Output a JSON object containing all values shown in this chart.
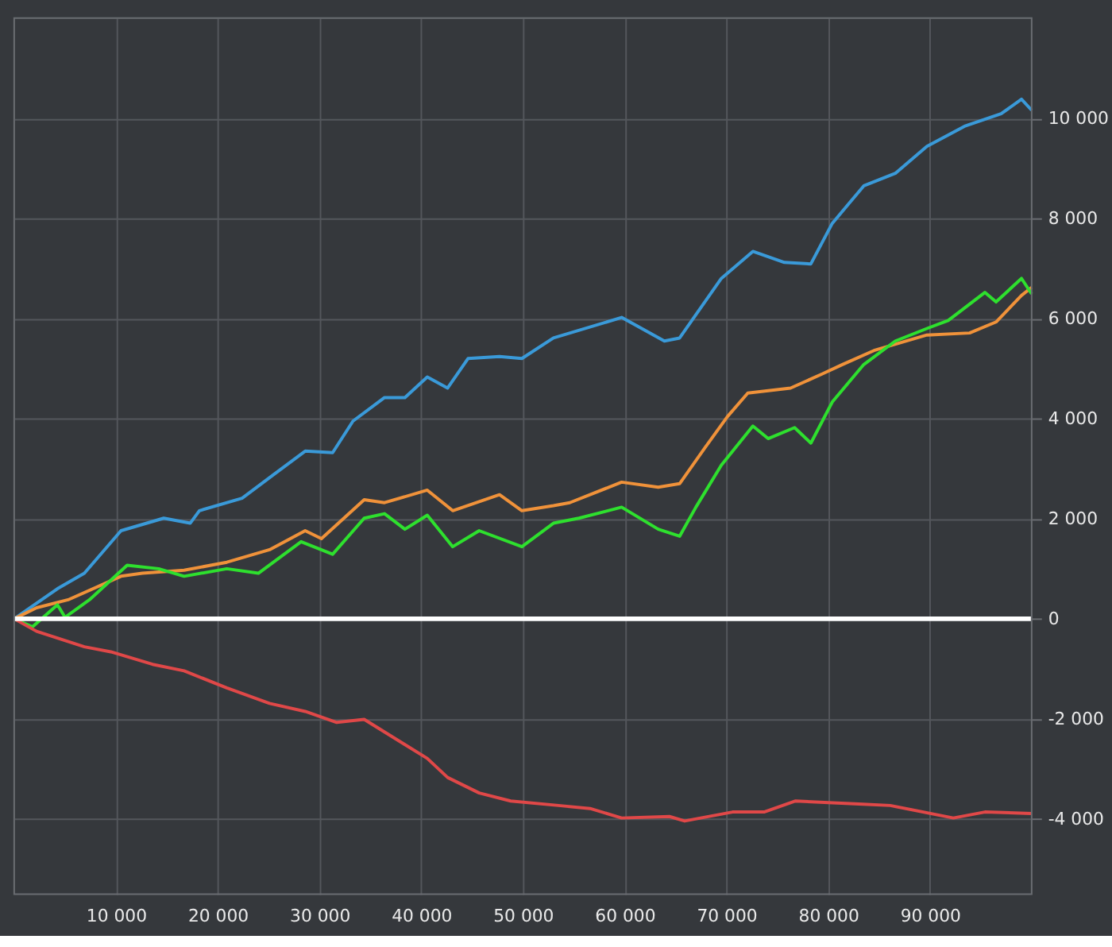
{
  "chart_data": {
    "type": "line",
    "xlim": [
      0,
      100000
    ],
    "ylim": [
      -5500,
      12000
    ],
    "xticks": [
      {
        "value": 10000,
        "label": "10 000"
      },
      {
        "value": 20000,
        "label": "20 000"
      },
      {
        "value": 30000,
        "label": "30 000"
      },
      {
        "value": 40000,
        "label": "40 000"
      },
      {
        "value": 50000,
        "label": "50 000"
      },
      {
        "value": 60000,
        "label": "60 000"
      },
      {
        "value": 70000,
        "label": "70 000"
      },
      {
        "value": 80000,
        "label": "80 000"
      },
      {
        "value": 90000,
        "label": "90 000"
      }
    ],
    "yticks": [
      {
        "value": -4000,
        "label": "-4 000"
      },
      {
        "value": -2000,
        "label": "-2 000"
      },
      0,
      {
        "value": 2000,
        "label": "2 000"
      },
      {
        "value": 4000,
        "label": "4 000"
      },
      {
        "value": 6000,
        "label": "6 000"
      },
      {
        "value": 8000,
        "label": "8 000"
      },
      {
        "value": 10000,
        "label": "10 000"
      }
    ],
    "grid": true,
    "marker": "none",
    "line_style": "solid",
    "ref_lines": [
      {
        "axis": "y",
        "value": 0,
        "color": "#ffffff"
      }
    ],
    "series": [
      {
        "color": "#3a9ad9",
        "x": [
          0,
          4250,
          6900,
          10500,
          14700,
          17300,
          18200,
          22400,
          25500,
          28600,
          31300,
          33300,
          36400,
          38400,
          40600,
          42600,
          44600,
          47700,
          49900,
          53000,
          59700,
          63900,
          65400,
          69500,
          72600,
          75700,
          78300,
          80400,
          83500,
          86600,
          89700,
          93400,
          97000,
          99000,
          100000
        ],
        "values": [
          0,
          600,
          910,
          1760,
          2010,
          1910,
          2160,
          2410,
          2880,
          3350,
          3320,
          3950,
          4420,
          4420,
          4830,
          4610,
          5200,
          5240,
          5200,
          5610,
          6020,
          5550,
          5610,
          6800,
          7340,
          7120,
          7090,
          7900,
          8650,
          8900,
          9440,
          9840,
          10090,
          10380,
          10160
        ]
      },
      {
        "color": "#f0923a",
        "x": [
          0,
          2200,
          5300,
          10500,
          12600,
          16700,
          20900,
          25100,
          28600,
          30200,
          34400,
          36400,
          40600,
          43100,
          47700,
          49900,
          53000,
          54600,
          59700,
          63300,
          65400,
          67900,
          70100,
          72100,
          76300,
          79400,
          81400,
          84500,
          89700,
          93900,
          96500,
          99000,
          100000
        ],
        "values": [
          0,
          220,
          380,
          850,
          910,
          970,
          1130,
          1380,
          1760,
          1600,
          2380,
          2320,
          2570,
          2160,
          2480,
          2160,
          2260,
          2320,
          2730,
          2630,
          2700,
          3420,
          4040,
          4510,
          4610,
          4890,
          5080,
          5360,
          5670,
          5710,
          5930,
          6460,
          6620
        ]
      },
      {
        "color": "#2ee02e",
        "x": [
          0,
          1800,
          4250,
          5000,
          7400,
          11100,
          14200,
          16700,
          20900,
          24000,
          28200,
          31300,
          34400,
          36400,
          38400,
          40600,
          43100,
          45700,
          49900,
          53000,
          55500,
          59700,
          63300,
          65400,
          67000,
          69500,
          72600,
          74100,
          76700,
          78300,
          80400,
          83500,
          86600,
          89700,
          91800,
          95400,
          96500,
          99000,
          100000
        ],
        "values": [
          0,
          -160,
          280,
          30,
          380,
          1070,
          1000,
          850,
          1000,
          910,
          1540,
          1290,
          2010,
          2100,
          1790,
          2070,
          1440,
          1760,
          1440,
          1910,
          2010,
          2230,
          1790,
          1650,
          2230,
          3070,
          3850,
          3600,
          3820,
          3510,
          4330,
          5080,
          5550,
          5800,
          5960,
          6520,
          6330,
          6800,
          6490
        ]
      },
      {
        "color": "#e04848",
        "x": [
          0,
          2200,
          6900,
          9500,
          13600,
          16700,
          20900,
          25100,
          28600,
          31700,
          34400,
          40600,
          42600,
          45700,
          48800,
          53500,
          56600,
          59700,
          64400,
          65900,
          70600,
          73700,
          76800,
          83000,
          86100,
          92300,
          95400,
          100000
        ],
        "values": [
          0,
          -250,
          -560,
          -660,
          -910,
          -1040,
          -1380,
          -1690,
          -1850,
          -2070,
          -2010,
          -2790,
          -3170,
          -3480,
          -3640,
          -3730,
          -3790,
          -3980,
          -3950,
          -4040,
          -3860,
          -3860,
          -3640,
          -3700,
          -3730,
          -3980,
          -3860,
          -3890
        ]
      }
    ]
  }
}
